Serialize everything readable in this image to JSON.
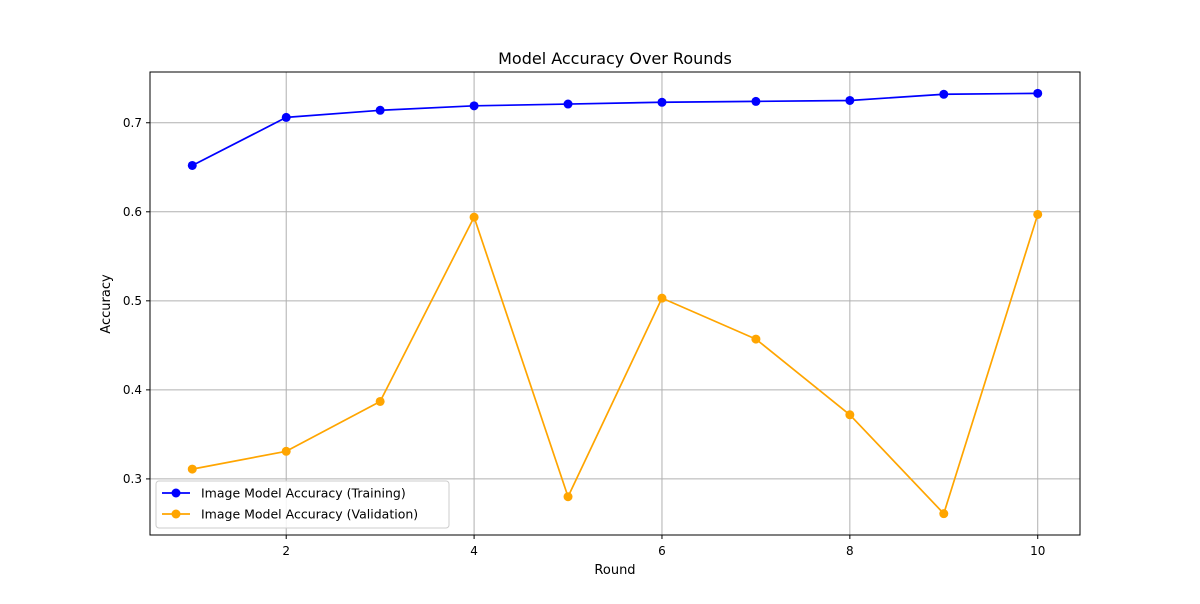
{
  "chart_data": {
    "type": "line",
    "title": "Model Accuracy Over Rounds",
    "xlabel": "Round",
    "ylabel": "Accuracy",
    "x": [
      1,
      2,
      3,
      4,
      5,
      6,
      7,
      8,
      9,
      10
    ],
    "xlim": [
      0.55,
      10.45
    ],
    "ylim": [
      0.237,
      0.757
    ],
    "xticks": [
      2,
      4,
      6,
      8,
      10
    ],
    "yticks": [
      0.3,
      0.4,
      0.5,
      0.6,
      0.7
    ],
    "xtick_labels": [
      "2",
      "4",
      "6",
      "8",
      "10"
    ],
    "ytick_labels": [
      "0.3",
      "0.4",
      "0.5",
      "0.6",
      "0.7"
    ],
    "grid": true,
    "legend_position": "lower-left",
    "series": [
      {
        "name": "Image Model Accuracy (Training)",
        "color": "#0000ff",
        "marker": "circle",
        "values": [
          0.652,
          0.706,
          0.714,
          0.719,
          0.721,
          0.723,
          0.724,
          0.725,
          0.732,
          0.733
        ]
      },
      {
        "name": "Image Model Accuracy (Validation)",
        "color": "#ffa500",
        "marker": "circle",
        "values": [
          0.311,
          0.331,
          0.387,
          0.594,
          0.28,
          0.503,
          0.457,
          0.372,
          0.261,
          0.597
        ]
      }
    ]
  }
}
